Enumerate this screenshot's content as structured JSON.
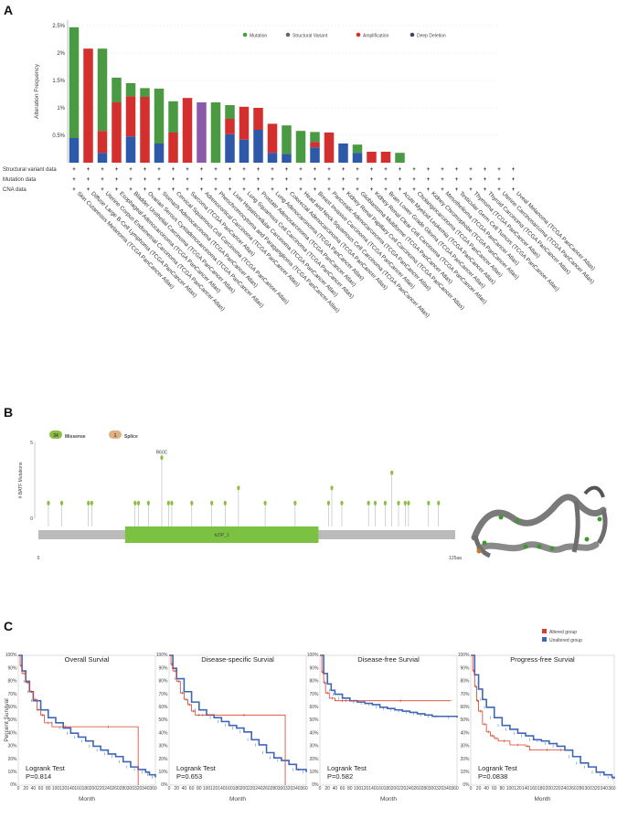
{
  "panels": {
    "a": "A",
    "b": "B",
    "c": "C"
  },
  "colors": {
    "mutation": "#4a9a44",
    "structural": "#8a5aa8",
    "amplification": "#d32f2f",
    "deep_deletion": "#2e58a8",
    "altered": "#d6402b",
    "unaltered": "#3e66b8",
    "domain": "#7cc242",
    "backbone": "#bbbbbb",
    "lollipop": "#8cbf3f",
    "splice": "#e0b080"
  },
  "chart_data": [
    {
      "type": "bar",
      "ylabel": "Alteration Frequency",
      "ylim": [
        0,
        2.6
      ],
      "yticks": [
        "0.5%",
        "1%",
        "1.5%",
        "2%",
        "2.5%"
      ],
      "ytick_values": [
        0.5,
        1,
        1.5,
        2,
        2.5
      ],
      "legend": [
        "Mutation",
        "Structural Variant",
        "Amplification",
        "Deep Deletion"
      ],
      "row_labels": [
        "Structural variant data",
        "Mutation data",
        "CNA data"
      ],
      "row_symbol": "+",
      "categories": [
        "Skin Cutaneous Melanoma (TCGA PanCancer Atlas)",
        "Diffuse Large B-Cell Lymphoma (TCGA PanCancer Atlas)",
        "Uterine Corpus Endometrial Carcinoma (TCGA PanCancer Atlas)",
        "Esophageal Adenocarcinoma (TCGA PanCancer Atlas)",
        "Bladder Urothelial Carcinoma (TCGA PanCancer Atlas)",
        "Ovarian Serous Cystadenocarcinoma (TCGA PanCancer Atlas)",
        "Stomach Adenocarcinoma (TCGA PanCancer Atlas)",
        "Cervical Squamous Cell Carcinoma (TCGA PanCancer Atlas)",
        "Sarcoma (TCGA PanCancer Atlas)",
        "Adrenocortical Carcinoma (TCGA PanCancer Atlas)",
        "Pheochromocytoma and Paraganglioma (TCGA PanCancer Atlas)",
        "Liver Hepatocellular Carcinoma (TCGA PanCancer Atlas)",
        "Lung Squamous Cell Carcinoma (TCGA PanCancer Atlas)",
        "Prostate Adenocarcinoma (TCGA PanCancer Atlas)",
        "Lung Adenocarcinoma (TCGA PanCancer Atlas)",
        "Colorectal Adenocarcinoma (TCGA PanCancer Atlas)",
        "Head and Neck Squamous Cell Carcinoma (TCGA PanCancer Atlas)",
        "Breast Invasive Carcinoma (TCGA PanCancer Atlas)",
        "Pancreatic Adenocarcinoma (TCGA PanCancer Atlas)",
        "Kidney Renal Papillary Cell Carcinoma (TCGA PanCancer Atlas)",
        "Glioblastoma Multiforme (TCGA PanCancer Atlas)",
        "Kidney Renal Clear Cell Carcinoma (TCGA PanCancer Atlas)",
        "Brain Lower Grade Glioma (TCGA PanCancer Atlas)",
        "Acute Myeloid Leukemia (TCGA PanCancer Atlas)",
        "Cholangiocarcinoma (TCGA PanCancer Atlas)",
        "Kidney Chromophobe (TCGA PanCancer Atlas)",
        "Mesothelioma (TCGA PanCancer Atlas)",
        "Testicular Germ Cell Tumors (TCGA PanCancer Atlas)",
        "Thymoma (TCGA PanCancer Atlas)",
        "Thyroid Carcinoma (TCGA PanCancer Atlas)",
        "Uterine Carcinosarcoma (TCGA PanCancer Atlas)",
        "Uveal Melanoma (TCGA PanCancer Atlas)"
      ],
      "series": [
        {
          "name": "Deep Deletion",
          "values": [
            0.45,
            0,
            0.18,
            0,
            0.48,
            0,
            0.35,
            0,
            0,
            0,
            0,
            0.52,
            0.42,
            0.6,
            0.18,
            0.16,
            0,
            0.28,
            0,
            0.35,
            0.18,
            0,
            0,
            0,
            0,
            0,
            0,
            0,
            0,
            0,
            0,
            0
          ]
        },
        {
          "name": "Amplification",
          "values": [
            0,
            2.08,
            0.4,
            1.1,
            0.73,
            1.2,
            0,
            0.55,
            1.18,
            0,
            0,
            0.28,
            0.6,
            0.4,
            0.53,
            0,
            0,
            0.1,
            0.55,
            0,
            0,
            0.2,
            0.2,
            0,
            0,
            0,
            0,
            0,
            0,
            0,
            0,
            0
          ]
        },
        {
          "name": "Structural Variant",
          "values": [
            0,
            0,
            0,
            0,
            0,
            0,
            0,
            0,
            0,
            1.1,
            0,
            0,
            0,
            0,
            0,
            0,
            0,
            0,
            0,
            0,
            0,
            0,
            0,
            0,
            0,
            0,
            0,
            0,
            0,
            0,
            0,
            0
          ]
        },
        {
          "name": "Mutation",
          "values": [
            2.02,
            0,
            1.5,
            0.45,
            0.24,
            0.16,
            1.0,
            0.57,
            0,
            0,
            1.1,
            0.25,
            0,
            0,
            0,
            0.52,
            0.58,
            0.18,
            0,
            0,
            0.15,
            0,
            0,
            0.18,
            0,
            0,
            0,
            0,
            0,
            0,
            0,
            0
          ]
        }
      ]
    },
    {
      "type": "lollipop",
      "ylabel": "# BATF Mutations",
      "y_max": 5,
      "legend": [
        {
          "count": "34",
          "label": "Missense"
        },
        {
          "count": "1",
          "label": "Splice"
        }
      ],
      "protein_length": 125,
      "x_start_label": "0",
      "x_end_label": "125aa",
      "domain": {
        "name": "bZIP_1",
        "start": 26,
        "end": 84
      },
      "hotspot_label": "R60C",
      "mutations": [
        {
          "pos": 3,
          "count": 1
        },
        {
          "pos": 7,
          "count": 1
        },
        {
          "pos": 15,
          "count": 1
        },
        {
          "pos": 16,
          "count": 1
        },
        {
          "pos": 29,
          "count": 1
        },
        {
          "pos": 30,
          "count": 1
        },
        {
          "pos": 33,
          "count": 1
        },
        {
          "pos": 37,
          "count": 4
        },
        {
          "pos": 39,
          "count": 1
        },
        {
          "pos": 40,
          "count": 1
        },
        {
          "pos": 46,
          "count": 1
        },
        {
          "pos": 52,
          "count": 1
        },
        {
          "pos": 56,
          "count": 1
        },
        {
          "pos": 60,
          "count": 2
        },
        {
          "pos": 68,
          "count": 1
        },
        {
          "pos": 77,
          "count": 1
        },
        {
          "pos": 87,
          "count": 1
        },
        {
          "pos": 88,
          "count": 2
        },
        {
          "pos": 91,
          "count": 1
        },
        {
          "pos": 99,
          "count": 1
        },
        {
          "pos": 101,
          "count": 1
        },
        {
          "pos": 104,
          "count": 1
        },
        {
          "pos": 106,
          "count": 3
        },
        {
          "pos": 108,
          "count": 1
        },
        {
          "pos": 110,
          "count": 1
        },
        {
          "pos": 111,
          "count": 1
        },
        {
          "pos": 117,
          "count": 1
        },
        {
          "pos": 120,
          "count": 1
        }
      ]
    },
    {
      "type": "line",
      "subtype": "kaplan-meier",
      "legend": [
        "Altered group",
        "Unaltered group"
      ],
      "shared_ylabel": "Percent Survival",
      "xlabel": "Month",
      "x_range": [
        0,
        366
      ],
      "xticks": [
        "0",
        "20",
        "40",
        "60",
        "80",
        "100",
        "120",
        "140",
        "160",
        "180",
        "200",
        "220",
        "240",
        "260",
        "280",
        "300",
        "320",
        "340",
        "360"
      ],
      "yticks": [
        "0%",
        "10%",
        "20%",
        "30%",
        "40%",
        "50%",
        "60%",
        "70%",
        "80%",
        "90%",
        "100%"
      ],
      "test_label": "Logrank Test",
      "plots": [
        {
          "title": "Overall Survial",
          "pvalue": "P=0.814",
          "altered": [
            [
              0,
              100
            ],
            [
              5,
              92
            ],
            [
              10,
              86
            ],
            [
              20,
              79
            ],
            [
              30,
              72
            ],
            [
              40,
              66
            ],
            [
              50,
              58
            ],
            [
              60,
              54
            ],
            [
              70,
              48
            ],
            [
              90,
              45
            ],
            [
              160,
              45
            ],
            [
              320,
              45
            ],
            [
              320,
              0
            ]
          ],
          "unaltered": [
            [
              0,
              100
            ],
            [
              10,
              88
            ],
            [
              20,
              80
            ],
            [
              30,
              72
            ],
            [
              40,
              65
            ],
            [
              60,
              58
            ],
            [
              80,
              52
            ],
            [
              100,
              48
            ],
            [
              120,
              44
            ],
            [
              140,
              40
            ],
            [
              160,
              37
            ],
            [
              180,
              34
            ],
            [
              200,
              30
            ],
            [
              220,
              27
            ],
            [
              240,
              24
            ],
            [
              260,
              22
            ],
            [
              280,
              18
            ],
            [
              300,
              14
            ],
            [
              320,
              12
            ],
            [
              340,
              10
            ],
            [
              350,
              8
            ],
            [
              366,
              6
            ]
          ]
        },
        {
          "title": "Disease-specific Survial",
          "pvalue": "P=0.653",
          "altered": [
            [
              0,
              100
            ],
            [
              5,
              93
            ],
            [
              10,
              88
            ],
            [
              20,
              80
            ],
            [
              30,
              71
            ],
            [
              40,
              66
            ],
            [
              50,
              62
            ],
            [
              60,
              57
            ],
            [
              70,
              54
            ],
            [
              90,
              54
            ],
            [
              310,
              54
            ],
            [
              310,
              0
            ]
          ],
          "unaltered": [
            [
              0,
              100
            ],
            [
              10,
              90
            ],
            [
              20,
              82
            ],
            [
              40,
              72
            ],
            [
              60,
              64
            ],
            [
              80,
              58
            ],
            [
              100,
              54
            ],
            [
              120,
              52
            ],
            [
              140,
              49
            ],
            [
              160,
              46
            ],
            [
              180,
              44
            ],
            [
              200,
              41
            ],
            [
              220,
              35
            ],
            [
              240,
              31
            ],
            [
              260,
              25
            ],
            [
              280,
              21
            ],
            [
              300,
              19
            ],
            [
              320,
              16
            ],
            [
              340,
              12
            ],
            [
              350,
              12
            ],
            [
              366,
              10
            ]
          ]
        },
        {
          "title": "Disease-free Survial",
          "pvalue": "P=0.582",
          "altered": [
            [
              0,
              100
            ],
            [
              5,
              87
            ],
            [
              10,
              79
            ],
            [
              15,
              71
            ],
            [
              25,
              67
            ],
            [
              40,
              65
            ],
            [
              80,
              65
            ],
            [
              350,
              65
            ]
          ],
          "unaltered": [
            [
              0,
              100
            ],
            [
              10,
              86
            ],
            [
              20,
              78
            ],
            [
              30,
              73
            ],
            [
              40,
              70
            ],
            [
              60,
              67
            ],
            [
              80,
              65
            ],
            [
              100,
              64
            ],
            [
              120,
              63
            ],
            [
              140,
              62
            ],
            [
              160,
              60
            ],
            [
              180,
              59
            ],
            [
              200,
              58
            ],
            [
              220,
              57
            ],
            [
              240,
              56
            ],
            [
              260,
              55
            ],
            [
              280,
              54
            ],
            [
              300,
              53
            ],
            [
              320,
              53
            ],
            [
              366,
              52
            ]
          ]
        },
        {
          "title": "Progress-free Survial",
          "pvalue": "P=0.0838",
          "altered": [
            [
              0,
              100
            ],
            [
              5,
              88
            ],
            [
              10,
              76
            ],
            [
              15,
              65
            ],
            [
              20,
              57
            ],
            [
              30,
              47
            ],
            [
              40,
              41
            ],
            [
              50,
              38
            ],
            [
              60,
              36
            ],
            [
              70,
              34
            ],
            [
              100,
              31
            ],
            [
              140,
              30
            ],
            [
              150,
              27
            ],
            [
              240,
              27
            ]
          ],
          "unaltered": [
            [
              0,
              100
            ],
            [
              10,
              85
            ],
            [
              20,
              74
            ],
            [
              30,
              66
            ],
            [
              40,
              60
            ],
            [
              60,
              52
            ],
            [
              80,
              46
            ],
            [
              100,
              43
            ],
            [
              120,
              40
            ],
            [
              140,
              38
            ],
            [
              160,
              35
            ],
            [
              180,
              34
            ],
            [
              200,
              32
            ],
            [
              220,
              30
            ],
            [
              240,
              27
            ],
            [
              260,
              22
            ],
            [
              280,
              17
            ],
            [
              300,
              14
            ],
            [
              320,
              10
            ],
            [
              340,
              8
            ],
            [
              360,
              6
            ],
            [
              366,
              5
            ]
          ]
        }
      ]
    }
  ]
}
